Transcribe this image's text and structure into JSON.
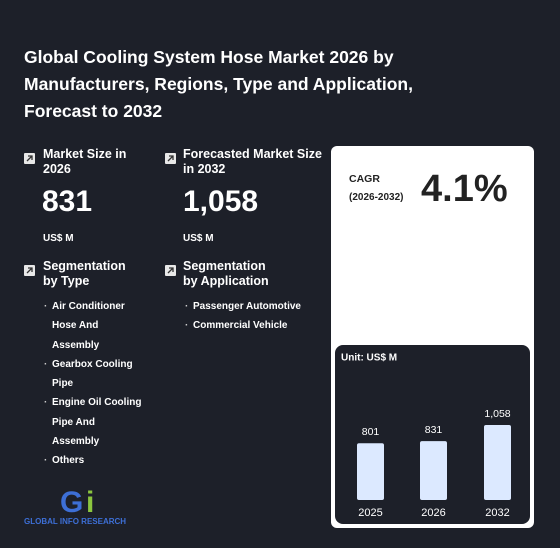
{
  "header": {
    "title": "Global Cooling System Hose Market 2026 by Manufacturers, Regions, Type and Application, Forecast to 2032"
  },
  "stats": [
    {
      "label": "Market Size in 2026",
      "value": "831",
      "unit": "US$ M"
    },
    {
      "label": "Forecasted Market Size in 2032",
      "value": "1,058",
      "unit": "US$ M"
    }
  ],
  "segments": [
    {
      "label": "Segmentation by Type",
      "items": [
        "Air Conditioner Hose And Assembly",
        "Gearbox Cooling Pipe",
        "Engine Oil Cooling Pipe And Assembly",
        "Others"
      ]
    },
    {
      "label": "Segmentation by Application",
      "items": [
        "Passenger Automotive",
        "Commercial Vehicle"
      ]
    }
  ],
  "cagr": {
    "label": "CAGR",
    "period": "(2026-2032)",
    "value": "4.1%"
  },
  "logo": "GLOBAL INFO RESEARCH",
  "chart_data": {
    "type": "bar",
    "subtitle": "Unit: US$ M",
    "categories": [
      "2025",
      "2026",
      "2032"
    ],
    "values": [
      801,
      831,
      1058
    ],
    "value_labels": [
      "801",
      "831",
      "1,058"
    ],
    "color": "#dce9ff"
  }
}
